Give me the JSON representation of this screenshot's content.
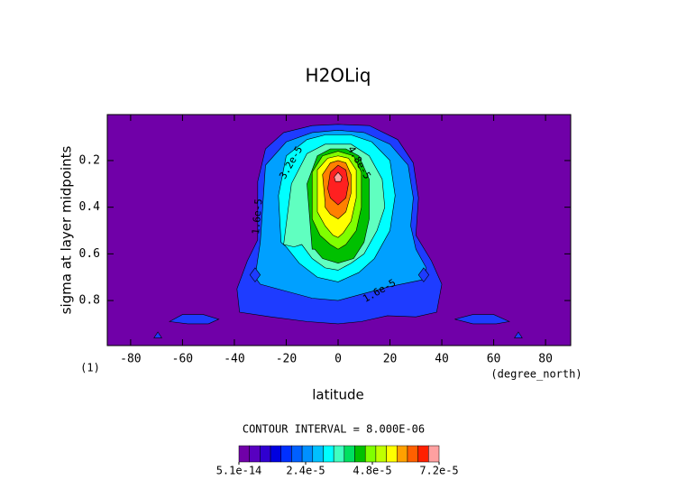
{
  "chart_data": {
    "type": "contour",
    "title": "H2OLiq",
    "x_label": "latitude",
    "y_label": "sigma at layer midpoints",
    "x_units": "(degree_north)",
    "y_units": "(1)",
    "xlim": [
      -89,
      89.7
    ],
    "ylim": [
      0.003,
      0.993
    ],
    "y_inverted": true,
    "xticks": [
      -80,
      -60,
      -40,
      -20,
      0,
      20,
      40,
      60,
      80
    ],
    "yticks": [
      0.2,
      0.4,
      0.6,
      0.8
    ],
    "background_color": "#7000a8",
    "contours": [
      {
        "color": "#1e3cff",
        "lat": [
          -38,
          -39,
          -35,
          -31,
          -31,
          -28,
          -21,
          -10,
          0,
          12,
          23,
          29,
          31,
          30,
          36,
          40,
          38,
          30,
          19,
          9,
          0,
          -12,
          -26
        ],
        "sigma": [
          0.85,
          0.75,
          0.63,
          0.54,
          0.29,
          0.15,
          0.08,
          0.05,
          0.045,
          0.05,
          0.11,
          0.21,
          0.36,
          0.52,
          0.63,
          0.73,
          0.85,
          0.87,
          0.865,
          0.89,
          0.9,
          0.89,
          0.87
        ]
      },
      {
        "color": "#1e3cff",
        "lat": [
          -65,
          -60,
          -52,
          -46,
          -50,
          -58
        ],
        "sigma": [
          0.89,
          0.86,
          0.86,
          0.88,
          0.9,
          0.9
        ]
      },
      {
        "color": "#1e3cff",
        "lat": [
          45,
          52,
          60,
          66,
          61,
          52
        ],
        "sigma": [
          0.88,
          0.86,
          0.86,
          0.89,
          0.9,
          0.9
        ]
      },
      {
        "color": "#1e3cff",
        "lat": [
          -71,
          -69.5,
          -68
        ],
        "sigma": [
          0.96,
          0.935,
          0.96
        ]
      },
      {
        "color": "#1e3cff",
        "lat": [
          68,
          69.5,
          71
        ],
        "sigma": [
          0.96,
          0.935,
          0.96
        ]
      },
      {
        "color": "#00a0ff",
        "lat": [
          -32,
          -30,
          -28,
          -20,
          -10,
          0,
          10,
          20,
          27,
          29,
          28,
          30,
          34,
          33,
          20,
          10,
          0,
          -10,
          -20,
          -30
        ],
        "sigma": [
          0.7,
          0.55,
          0.22,
          0.12,
          0.08,
          0.07,
          0.08,
          0.13,
          0.22,
          0.36,
          0.48,
          0.58,
          0.66,
          0.71,
          0.74,
          0.77,
          0.8,
          0.79,
          0.76,
          0.73
        ]
      },
      {
        "color": "#1e3cff",
        "lat": [
          -34,
          -32,
          -30,
          -32
        ],
        "sigma": [
          0.69,
          0.66,
          0.69,
          0.72
        ]
      },
      {
        "color": "#1e3cff",
        "lat": [
          31,
          33,
          35,
          33
        ],
        "sigma": [
          0.69,
          0.66,
          0.69,
          0.72
        ]
      },
      {
        "color": "#00ffff",
        "lat": [
          -22,
          -23,
          -20,
          -12,
          -5,
          5,
          13,
          20,
          22,
          20,
          14,
          8,
          0,
          -8,
          -15,
          -20
        ],
        "sigma": [
          0.55,
          0.35,
          0.18,
          0.11,
          0.09,
          0.09,
          0.12,
          0.2,
          0.35,
          0.5,
          0.62,
          0.68,
          0.72,
          0.7,
          0.64,
          0.57
        ]
      },
      {
        "color": "#60ffc0",
        "lat": [
          -21,
          -18,
          -12,
          -5,
          5,
          12,
          17,
          18,
          15,
          10,
          5,
          0,
          -5,
          -10,
          -14,
          -17
        ],
        "sigma": [
          0.56,
          0.3,
          0.17,
          0.13,
          0.13,
          0.18,
          0.28,
          0.4,
          0.5,
          0.6,
          0.64,
          0.67,
          0.66,
          0.62,
          0.56,
          0.57
        ]
      },
      {
        "color": "#00c000",
        "lat": [
          -10,
          -12,
          -8,
          -3,
          3,
          8,
          12,
          12,
          10,
          6,
          0,
          -6,
          -9
        ],
        "sigma": [
          0.58,
          0.3,
          0.18,
          0.15,
          0.15,
          0.18,
          0.28,
          0.45,
          0.55,
          0.62,
          0.64,
          0.62,
          0.58
        ]
      },
      {
        "color": "#80ff00",
        "lat": [
          -10,
          -10,
          -6,
          0,
          6,
          9,
          9,
          7,
          3,
          0,
          -3,
          -7
        ],
        "sigma": [
          0.45,
          0.25,
          0.18,
          0.16,
          0.18,
          0.25,
          0.4,
          0.5,
          0.56,
          0.58,
          0.56,
          0.52
        ]
      },
      {
        "color": "#ffff00",
        "lat": [
          -8,
          -8,
          -4,
          0,
          4,
          7,
          7,
          5,
          2,
          0,
          -2,
          -5
        ],
        "sigma": [
          0.42,
          0.24,
          0.19,
          0.18,
          0.19,
          0.24,
          0.36,
          0.46,
          0.51,
          0.53,
          0.52,
          0.48
        ]
      },
      {
        "color": "#ff8000",
        "lat": [
          -5,
          -6,
          -3,
          0,
          3,
          5,
          5,
          3,
          0,
          -3,
          -5
        ],
        "sigma": [
          0.38,
          0.26,
          0.21,
          0.2,
          0.21,
          0.26,
          0.34,
          0.42,
          0.45,
          0.43,
          0.4
        ]
      },
      {
        "color": "#ff2020",
        "lat": [
          -4,
          -3,
          0,
          3,
          4,
          3,
          0,
          -3
        ],
        "sigma": [
          0.32,
          0.25,
          0.22,
          0.24,
          0.3,
          0.36,
          0.39,
          0.36
        ]
      },
      {
        "color": "#ffa0a0",
        "lat": [
          -1.5,
          0,
          1.5,
          1,
          -1
        ],
        "sigma": [
          0.27,
          0.25,
          0.27,
          0.29,
          0.29
        ]
      }
    ],
    "contour_labels": [
      {
        "text": "1.6e-5",
        "lat": -31,
        "sigma": 0.44,
        "angle": -85
      },
      {
        "text": "3.2e-5",
        "lat": -18,
        "sigma": 0.21,
        "angle": -60
      },
      {
        "text": "4.8e-5",
        "lat": 8,
        "sigma": 0.21,
        "angle": 60
      },
      {
        "text": "1.6e-5",
        "lat": 16,
        "sigma": 0.76,
        "angle": -30
      }
    ],
    "annotation": "CONTOUR INTERVAL = 8.000E-06",
    "colorbar": {
      "clim": [
        5.1e-14,
        7.2e-05
      ],
      "colors": [
        "#7000a8",
        "#5800c0",
        "#3000d0",
        "#0000e0",
        "#0030ff",
        "#0060ff",
        "#0090ff",
        "#00c0ff",
        "#00ffff",
        "#40ffc0",
        "#00e060",
        "#00c000",
        "#80ff00",
        "#c0ff00",
        "#ffff00",
        "#ffa000",
        "#ff6000",
        "#ff2000",
        "#ffa0a0"
      ],
      "ticks": [
        {
          "value": 5.1e-14,
          "label": "5.1e-14"
        },
        {
          "value": 2.4e-05,
          "label": "2.4e-5"
        },
        {
          "value": 4.8e-05,
          "label": "4.8e-5"
        },
        {
          "value": 7.2e-05,
          "label": "7.2e-5"
        }
      ]
    }
  }
}
